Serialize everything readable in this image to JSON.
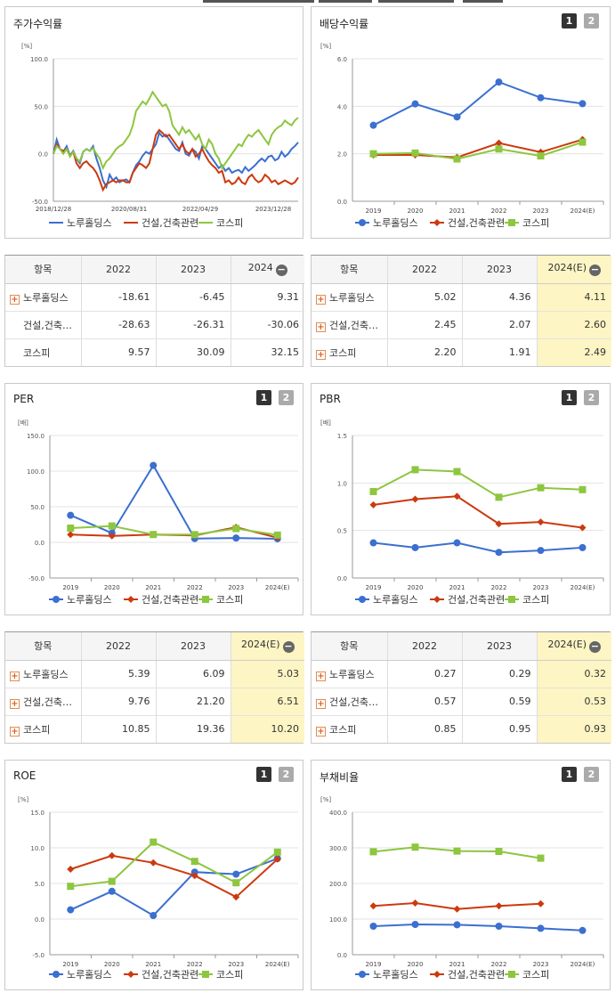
{
  "panels": {
    "stock": {
      "title": "주가수익률"
    },
    "dividend": {
      "title": "배당수익률"
    },
    "per": {
      "title": "PER"
    },
    "pbr": {
      "title": "PBR"
    },
    "roe": {
      "title": "ROE"
    },
    "debt": {
      "title": "부채비율"
    }
  },
  "page_buttons": [
    "1",
    "2"
  ],
  "tables": {
    "stock": {
      "headers": [
        "항목",
        "2022",
        "2023",
        "2024"
      ],
      "rows": [
        {
          "name": "노루홀딩스",
          "v1": "-18.61",
          "v2": "-6.45",
          "v3": "9.31"
        },
        {
          "name": "건설,건축…",
          "v1": "-28.63",
          "v2": "-26.31",
          "v3": "-30.06"
        },
        {
          "name": "코스피",
          "v1": "9.57",
          "v2": "30.09",
          "v3": "32.15"
        }
      ]
    },
    "dividend": {
      "headers": [
        "항목",
        "2022",
        "2023",
        "2024(E)"
      ],
      "rows": [
        {
          "name": "노루홀딩스",
          "v1": "5.02",
          "v2": "4.36",
          "v3": "4.11"
        },
        {
          "name": "건설,건축…",
          "v1": "2.45",
          "v2": "2.07",
          "v3": "2.60"
        },
        {
          "name": "코스피",
          "v1": "2.20",
          "v2": "1.91",
          "v3": "2.49"
        }
      ]
    },
    "per": {
      "headers": [
        "항목",
        "2022",
        "2023",
        "2024(E)"
      ],
      "rows": [
        {
          "name": "노루홀딩스",
          "v1": "5.39",
          "v2": "6.09",
          "v3": "5.03"
        },
        {
          "name": "건설,건축…",
          "v1": "9.76",
          "v2": "21.20",
          "v3": "6.51"
        },
        {
          "name": "코스피",
          "v1": "10.85",
          "v2": "19.36",
          "v3": "10.20"
        }
      ]
    },
    "pbr": {
      "headers": [
        "항목",
        "2022",
        "2023",
        "2024(E)"
      ],
      "rows": [
        {
          "name": "노루홀딩스",
          "v1": "0.27",
          "v2": "0.29",
          "v3": "0.32"
        },
        {
          "name": "건설,건축…",
          "v1": "0.57",
          "v2": "0.59",
          "v3": "0.53"
        },
        {
          "name": "코스피",
          "v1": "0.85",
          "v2": "0.95",
          "v3": "0.93"
        }
      ]
    }
  },
  "chart_data": [
    {
      "id": "stock",
      "type": "line",
      "unit": "[%]",
      "yticks": [
        "100.0",
        "50.0",
        "0.0",
        "-50.0"
      ],
      "ylim": [
        -50,
        100
      ],
      "xticks": [
        "2018/12/28",
        "2020/08/31",
        "2022/04/29",
        "2023/12/28"
      ],
      "series": [
        {
          "name": "노루홀딩스",
          "color": "#3b6fd0",
          "values": [
            0,
            15,
            5,
            2,
            8,
            -2,
            3,
            -5,
            -10,
            2,
            5,
            3,
            8,
            -5,
            -15,
            -28,
            -35,
            -22,
            -28,
            -25,
            -30,
            -28,
            -27,
            -30,
            -20,
            -12,
            -8,
            -2,
            2,
            0,
            5,
            10,
            22,
            18,
            20,
            15,
            10,
            5,
            3,
            12,
            0,
            -2,
            5,
            2,
            -5,
            8,
            5,
            0,
            -5,
            -10,
            -15,
            -12,
            -18,
            -15,
            -20,
            -18,
            -17,
            -20,
            -14,
            -18,
            -15,
            -12,
            -8,
            -5,
            -8,
            -3,
            -2,
            -7,
            -5,
            2,
            -3,
            0,
            5,
            8,
            12
          ]
        },
        {
          "name": "건설,건축관련",
          "color": "#cc3a0e",
          "values": [
            0,
            10,
            5,
            3,
            5,
            -2,
            2,
            -10,
            -15,
            -10,
            -8,
            -12,
            -15,
            -20,
            -28,
            -38,
            -32,
            -30,
            -28,
            -30,
            -28,
            -28,
            -30,
            -30,
            -20,
            -15,
            -10,
            -12,
            -15,
            -10,
            5,
            20,
            25,
            22,
            18,
            20,
            15,
            10,
            5,
            10,
            3,
            0,
            5,
            -3,
            0,
            5,
            -2,
            -8,
            -12,
            -15,
            -20,
            -18,
            -30,
            -28,
            -32,
            -30,
            -25,
            -30,
            -32,
            -25,
            -22,
            -27,
            -30,
            -28,
            -22,
            -25,
            -30,
            -28,
            -32,
            -30,
            -28,
            -30,
            -32,
            -30,
            -25
          ]
        },
        {
          "name": "코스피",
          "color": "#8dc63f",
          "values": [
            0,
            8,
            5,
            0,
            5,
            -3,
            2,
            -5,
            -8,
            2,
            5,
            3,
            6,
            0,
            -5,
            -15,
            -8,
            -5,
            0,
            5,
            8,
            10,
            15,
            20,
            30,
            45,
            50,
            55,
            52,
            58,
            65,
            60,
            55,
            50,
            52,
            45,
            30,
            25,
            20,
            28,
            22,
            25,
            20,
            15,
            20,
            10,
            5,
            15,
            10,
            0,
            -5,
            -15,
            -10,
            -5,
            0,
            5,
            10,
            8,
            15,
            20,
            18,
            22,
            25,
            20,
            15,
            10,
            20,
            25,
            28,
            30,
            35,
            32,
            30,
            35,
            38
          ]
        }
      ]
    },
    {
      "id": "dividend",
      "type": "line",
      "unit": "[%]",
      "yticks": [
        "6.0",
        "4.0",
        "2.0",
        "0.0"
      ],
      "ylim": [
        0,
        6
      ],
      "categories": [
        "2019",
        "2020",
        "2021",
        "2022",
        "2023",
        "2024(E)"
      ],
      "series": [
        {
          "name": "노루홀딩스",
          "color": "#3b6fd0",
          "marker": "circle",
          "values": [
            3.2,
            4.1,
            3.55,
            5.02,
            4.36,
            4.11
          ]
        },
        {
          "name": "건설,건축관련",
          "color": "#cc3a0e",
          "marker": "diamond",
          "values": [
            1.95,
            1.95,
            1.85,
            2.45,
            2.07,
            2.6
          ]
        },
        {
          "name": "코스피",
          "color": "#8dc63f",
          "marker": "square",
          "values": [
            2.0,
            2.03,
            1.78,
            2.2,
            1.91,
            2.49
          ]
        }
      ]
    },
    {
      "id": "per",
      "type": "line",
      "unit": "[배]",
      "yticks": [
        "150.0",
        "100.0",
        "50.0",
        "0.0",
        "-50.0"
      ],
      "ylim": [
        -50,
        150
      ],
      "categories": [
        "2019",
        "2020",
        "2021",
        "2022",
        "2023",
        "2024(E)"
      ],
      "series": [
        {
          "name": "노루홀딩스",
          "color": "#3b6fd0",
          "marker": "circle",
          "values": [
            38,
            13,
            108,
            5.39,
            6.09,
            5.03
          ]
        },
        {
          "name": "건설,건축관련",
          "color": "#cc3a0e",
          "marker": "diamond",
          "values": [
            11,
            9,
            11,
            9.76,
            21.2,
            6.51
          ]
        },
        {
          "name": "코스피",
          "color": "#8dc63f",
          "marker": "square",
          "values": [
            20,
            23,
            11,
            10.85,
            19.36,
            10.2
          ]
        }
      ]
    },
    {
      "id": "pbr",
      "type": "line",
      "unit": "[배]",
      "yticks": [
        "1.5",
        "1.0",
        "0.5",
        "0.0"
      ],
      "ylim": [
        0,
        1.5
      ],
      "categories": [
        "2019",
        "2020",
        "2021",
        "2022",
        "2023",
        "2024(E)"
      ],
      "series": [
        {
          "name": "노루홀딩스",
          "color": "#3b6fd0",
          "marker": "circle",
          "values": [
            0.37,
            0.32,
            0.37,
            0.27,
            0.29,
            0.32
          ]
        },
        {
          "name": "건설,건축관련",
          "color": "#cc3a0e",
          "marker": "diamond",
          "values": [
            0.77,
            0.83,
            0.86,
            0.57,
            0.59,
            0.53
          ]
        },
        {
          "name": "코스피",
          "color": "#8dc63f",
          "marker": "square",
          "values": [
            0.91,
            1.14,
            1.12,
            0.85,
            0.95,
            0.93
          ]
        }
      ]
    },
    {
      "id": "roe",
      "type": "line",
      "unit": "[%]",
      "yticks": [
        "15.0",
        "10.0",
        "5.0",
        "0.0",
        "-5.0"
      ],
      "ylim": [
        -5,
        15
      ],
      "categories": [
        "2019",
        "2020",
        "2021",
        "2022",
        "2023",
        "2024(E)"
      ],
      "series": [
        {
          "name": "노루홀딩스",
          "color": "#3b6fd0",
          "marker": "circle",
          "values": [
            1.3,
            3.9,
            0.5,
            6.6,
            6.3,
            8.5
          ]
        },
        {
          "name": "건설,건축관련",
          "color": "#cc3a0e",
          "marker": "diamond",
          "values": [
            7.0,
            8.9,
            7.9,
            6.1,
            3.1,
            8.4
          ]
        },
        {
          "name": "코스피",
          "color": "#8dc63f",
          "marker": "square",
          "values": [
            4.6,
            5.3,
            10.8,
            8.1,
            5.1,
            9.4
          ]
        }
      ]
    },
    {
      "id": "debt",
      "type": "line",
      "unit": "[%]",
      "yticks": [
        "400.0",
        "300.0",
        "200.0",
        "100.0",
        "0.0"
      ],
      "ylim": [
        0,
        400
      ],
      "categories": [
        "2019",
        "2020",
        "2021",
        "2022",
        "2023",
        "2024(E)"
      ],
      "series": [
        {
          "name": "노루홀딩스",
          "color": "#3b6fd0",
          "marker": "circle",
          "values": [
            80,
            85,
            84,
            80,
            74,
            68
          ]
        },
        {
          "name": "건설,건축관련",
          "color": "#cc3a0e",
          "marker": "diamond",
          "values": [
            137,
            145,
            128,
            137,
            143,
            null
          ]
        },
        {
          "name": "코스피",
          "color": "#8dc63f",
          "marker": "square",
          "values": [
            289,
            302,
            291,
            290,
            271,
            null
          ]
        }
      ]
    }
  ]
}
